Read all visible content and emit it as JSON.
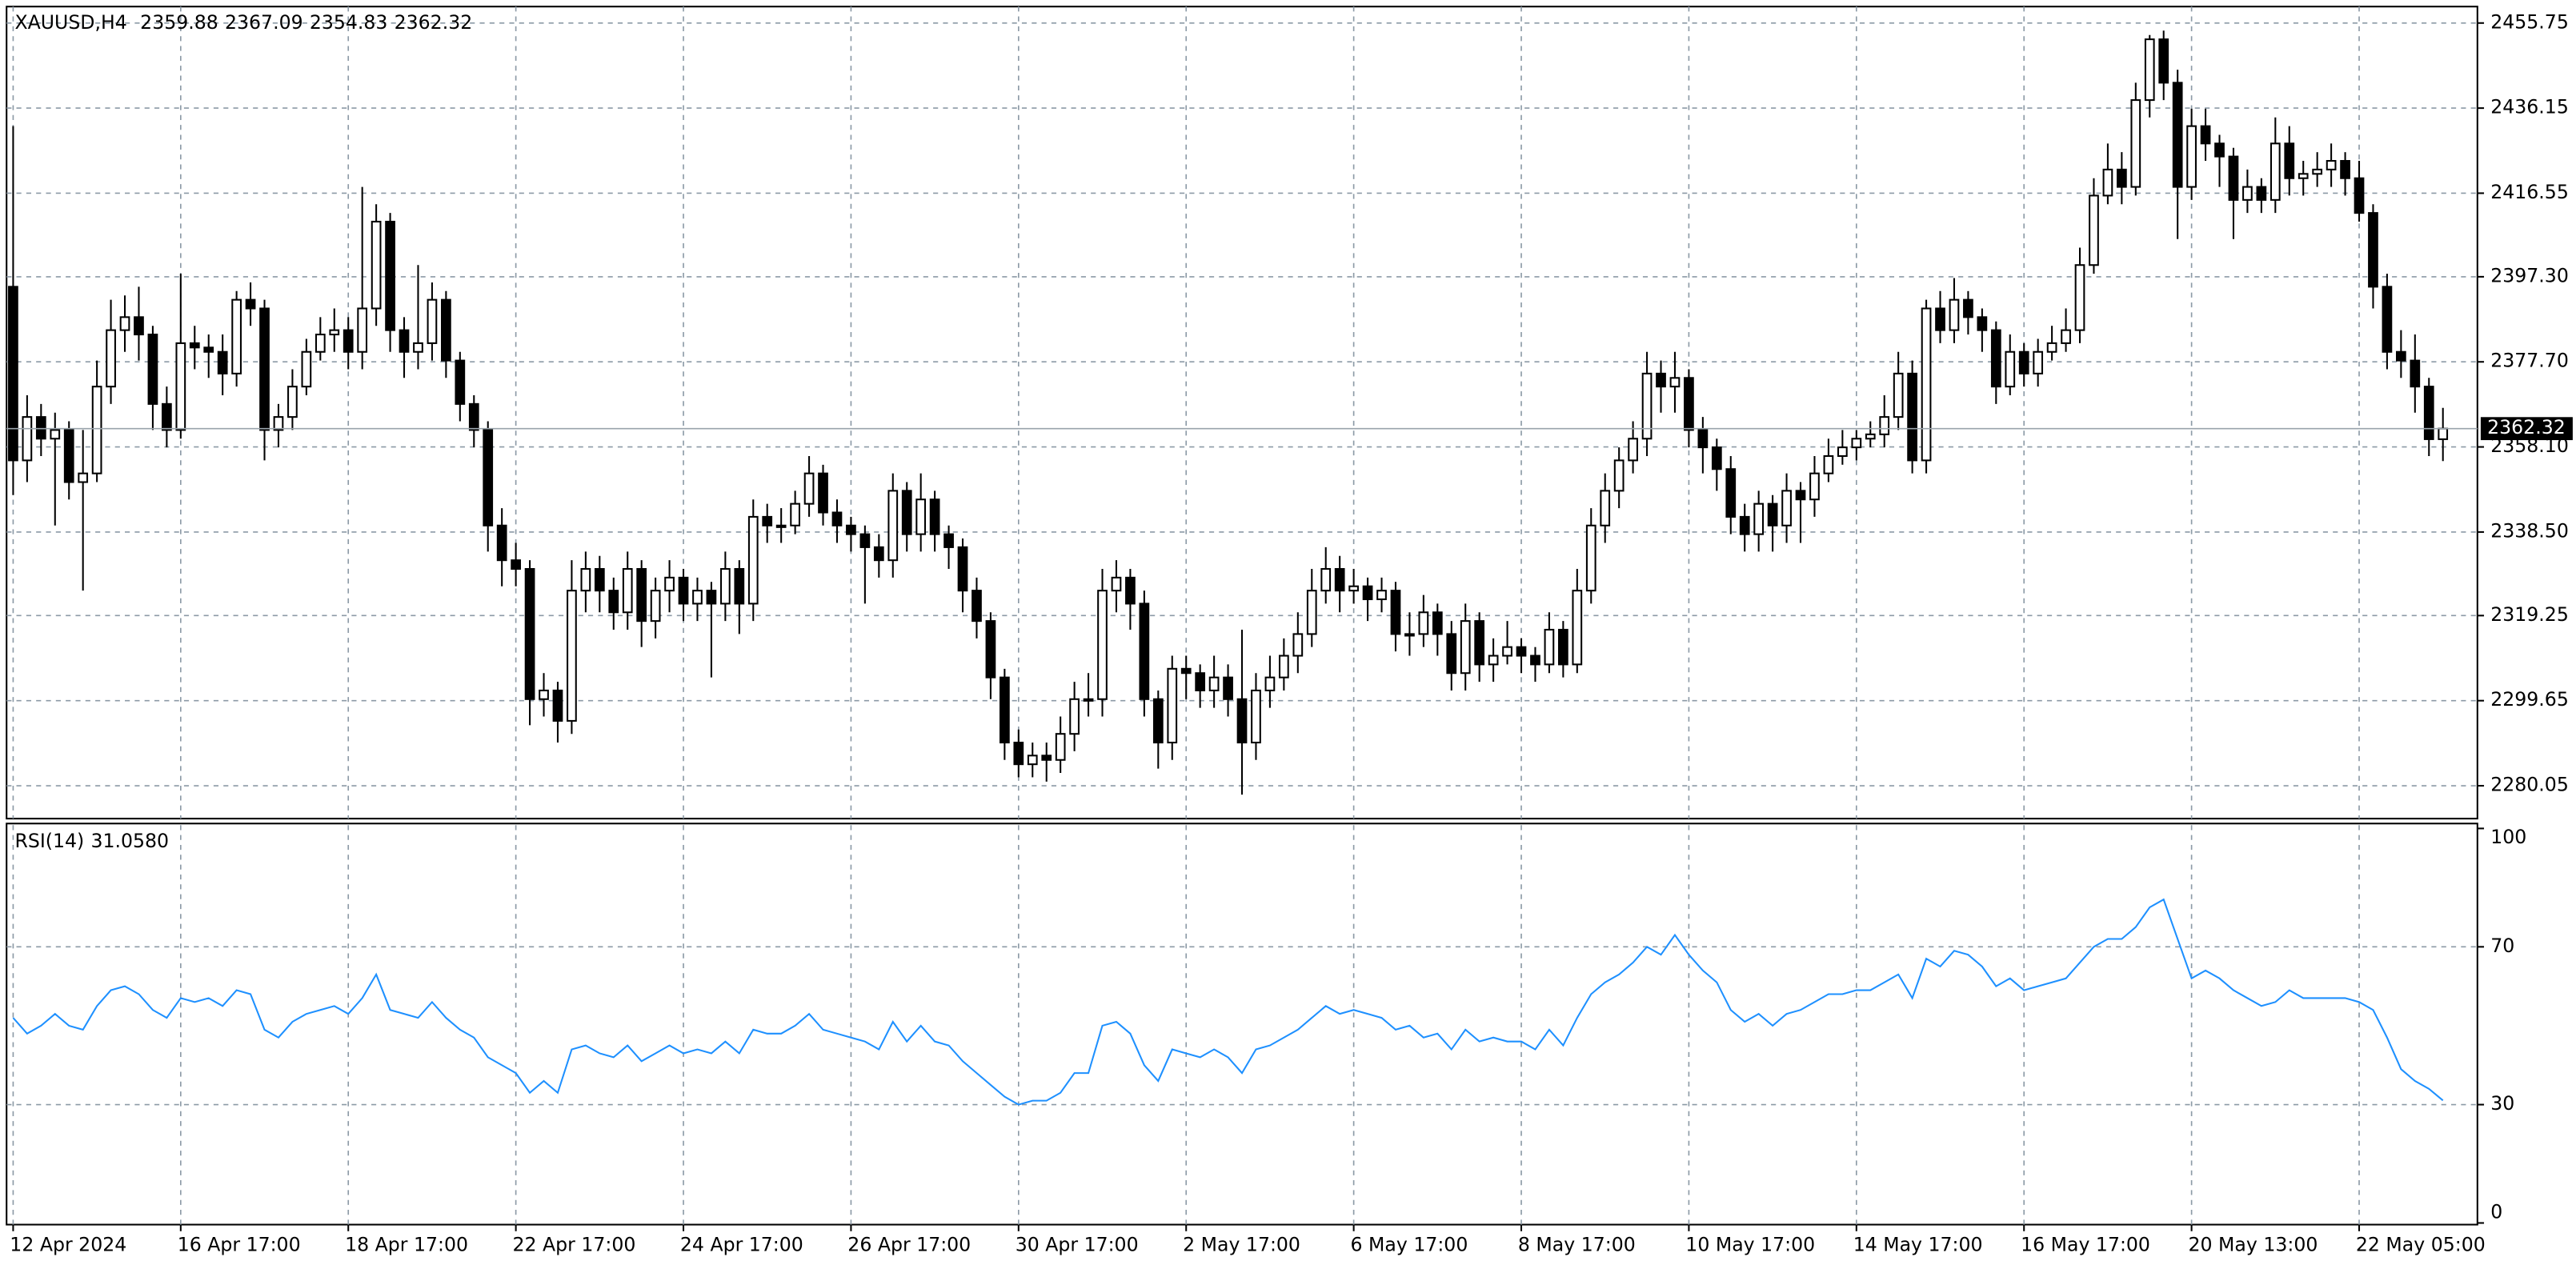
{
  "chart_data": {
    "type": "candlestick",
    "symbol": "XAUUSD,H4",
    "categories": [
      "12 Apr 2024",
      null,
      null,
      null,
      null,
      null,
      null,
      null,
      null,
      null,
      null,
      null,
      "16 Apr 17:00",
      null,
      null,
      null,
      null,
      null,
      null,
      null,
      null,
      null,
      null,
      null,
      "18 Apr 17:00",
      null,
      null,
      null,
      null,
      null,
      null,
      null,
      null,
      null,
      null,
      null,
      "22 Apr 17:00",
      null,
      null,
      null,
      null,
      null,
      null,
      null,
      null,
      null,
      null,
      null,
      "24 Apr 17:00",
      null,
      null,
      null,
      null,
      null,
      null,
      null,
      null,
      null,
      null,
      null,
      "26 Apr 17:00",
      null,
      null,
      null,
      null,
      null,
      null,
      null,
      null,
      null,
      null,
      null,
      "30 Apr 17:00",
      null,
      null,
      null,
      null,
      null,
      null,
      null,
      null,
      null,
      null,
      null,
      "2 May 17:00",
      null,
      null,
      null,
      null,
      null,
      null,
      null,
      null,
      null,
      null,
      null,
      "6 May 17:00",
      null,
      null,
      null,
      null,
      null,
      null,
      null,
      null,
      null,
      null,
      null,
      "8 May 17:00",
      null,
      null,
      null,
      null,
      null,
      null,
      null,
      null,
      null,
      null,
      null,
      "10 May 17:00",
      null,
      null,
      null,
      null,
      null,
      null,
      null,
      null,
      null,
      null,
      null,
      "14 May 17:00",
      null,
      null,
      null,
      null,
      null,
      null,
      null,
      null,
      null,
      null,
      null,
      "16 May 17:00",
      null,
      null,
      null,
      null,
      null,
      null,
      null,
      null,
      null,
      null,
      null,
      "20 May 13:00",
      null,
      null,
      null,
      null,
      null,
      null,
      null,
      null,
      null,
      null,
      null,
      "22 May 05:00",
      null,
      null,
      null,
      null,
      null,
      null
    ],
    "candles": [
      [
        2395,
        2432,
        2347,
        2355
      ],
      [
        2355,
        2370,
        2350,
        2365
      ],
      [
        2365,
        2368,
        2356,
        2360
      ],
      [
        2360,
        2366,
        2340,
        2362
      ],
      [
        2362,
        2364,
        2346,
        2350
      ],
      [
        2350,
        2362,
        2325,
        2352
      ],
      [
        2352,
        2378,
        2350,
        2372
      ],
      [
        2372,
        2392,
        2368,
        2385
      ],
      [
        2385,
        2393,
        2380,
        2388
      ],
      [
        2388,
        2395,
        2378,
        2384
      ],
      [
        2384,
        2386,
        2362,
        2368
      ],
      [
        2368,
        2372,
        2358,
        2362
      ],
      [
        2362,
        2398,
        2360,
        2382
      ],
      [
        2382,
        2386,
        2376,
        2381
      ],
      [
        2381,
        2384,
        2374,
        2380
      ],
      [
        2380,
        2384,
        2370,
        2375
      ],
      [
        2375,
        2394,
        2372,
        2392
      ],
      [
        2392,
        2396,
        2386,
        2390
      ],
      [
        2390,
        2392,
        2355,
        2362
      ],
      [
        2362,
        2368,
        2358,
        2365
      ],
      [
        2365,
        2376,
        2362,
        2372
      ],
      [
        2372,
        2383,
        2370,
        2380
      ],
      [
        2380,
        2388,
        2378,
        2384
      ],
      [
        2384,
        2390,
        2380,
        2385
      ],
      [
        2385,
        2388,
        2376,
        2380
      ],
      [
        2380,
        2418,
        2376,
        2390
      ],
      [
        2390,
        2414,
        2386,
        2410
      ],
      [
        2410,
        2412,
        2380,
        2385
      ],
      [
        2385,
        2388,
        2374,
        2380
      ],
      [
        2380,
        2400,
        2376,
        2382
      ],
      [
        2382,
        2396,
        2378,
        2392
      ],
      [
        2392,
        2394,
        2374,
        2378
      ],
      [
        2378,
        2380,
        2364,
        2368
      ],
      [
        2368,
        2370,
        2358,
        2362
      ],
      [
        2362,
        2364,
        2334,
        2340
      ],
      [
        2340,
        2344,
        2326,
        2332
      ],
      [
        2332,
        2336,
        2326,
        2330
      ],
      [
        2330,
        2332,
        2294,
        2300
      ],
      [
        2300,
        2306,
        2296,
        2302
      ],
      [
        2302,
        2304,
        2290,
        2295
      ],
      [
        2295,
        2332,
        2292,
        2325
      ],
      [
        2325,
        2334,
        2320,
        2330
      ],
      [
        2330,
        2333,
        2320,
        2325
      ],
      [
        2325,
        2328,
        2316,
        2320
      ],
      [
        2320,
        2334,
        2316,
        2330
      ],
      [
        2330,
        2332,
        2312,
        2318
      ],
      [
        2318,
        2328,
        2314,
        2325
      ],
      [
        2325,
        2332,
        2320,
        2328
      ],
      [
        2328,
        2330,
        2318,
        2322
      ],
      [
        2322,
        2328,
        2318,
        2325
      ],
      [
        2325,
        2327,
        2305,
        2322
      ],
      [
        2322,
        2334,
        2318,
        2330
      ],
      [
        2330,
        2332,
        2315,
        2322
      ],
      [
        2322,
        2346,
        2318,
        2342
      ],
      [
        2342,
        2345,
        2336,
        2340
      ],
      [
        2340,
        2344,
        2336,
        2340
      ],
      [
        2340,
        2348,
        2338,
        2345
      ],
      [
        2345,
        2356,
        2342,
        2352
      ],
      [
        2352,
        2354,
        2340,
        2343
      ],
      [
        2343,
        2346,
        2336,
        2340
      ],
      [
        2340,
        2342,
        2334,
        2338
      ],
      [
        2338,
        2340,
        2322,
        2335
      ],
      [
        2335,
        2338,
        2328,
        2332
      ],
      [
        2332,
        2352,
        2328,
        2348
      ],
      [
        2348,
        2350,
        2334,
        2338
      ],
      [
        2338,
        2352,
        2334,
        2346
      ],
      [
        2346,
        2348,
        2334,
        2338
      ],
      [
        2338,
        2340,
        2330,
        2335
      ],
      [
        2335,
        2337,
        2320,
        2325
      ],
      [
        2325,
        2328,
        2314,
        2318
      ],
      [
        2318,
        2320,
        2300,
        2305
      ],
      [
        2305,
        2307,
        2286,
        2290
      ],
      [
        2290,
        2293,
        2282,
        2285
      ],
      [
        2285,
        2290,
        2282,
        2287
      ],
      [
        2287,
        2290,
        2281,
        2286
      ],
      [
        2286,
        2296,
        2283,
        2292
      ],
      [
        2292,
        2304,
        2288,
        2300
      ],
      [
        2300,
        2306,
        2296,
        2300
      ],
      [
        2300,
        2330,
        2296,
        2325
      ],
      [
        2325,
        2332,
        2320,
        2328
      ],
      [
        2328,
        2330,
        2316,
        2322
      ],
      [
        2322,
        2325,
        2296,
        2300
      ],
      [
        2300,
        2302,
        2284,
        2290
      ],
      [
        2290,
        2310,
        2286,
        2307
      ],
      [
        2307,
        2310,
        2300,
        2306
      ],
      [
        2306,
        2308,
        2298,
        2302
      ],
      [
        2302,
        2310,
        2298,
        2305
      ],
      [
        2305,
        2308,
        2296,
        2300
      ],
      [
        2300,
        2316,
        2278,
        2290
      ],
      [
        2290,
        2306,
        2286,
        2302
      ],
      [
        2302,
        2310,
        2298,
        2305
      ],
      [
        2305,
        2314,
        2302,
        2310
      ],
      [
        2310,
        2320,
        2306,
        2315
      ],
      [
        2315,
        2330,
        2312,
        2325
      ],
      [
        2325,
        2335,
        2322,
        2330
      ],
      [
        2330,
        2333,
        2320,
        2325
      ],
      [
        2325,
        2330,
        2322,
        2326
      ],
      [
        2326,
        2328,
        2318,
        2323
      ],
      [
        2323,
        2328,
        2320,
        2325
      ],
      [
        2325,
        2327,
        2311,
        2315
      ],
      [
        2315,
        2320,
        2310,
        2315
      ],
      [
        2315,
        2324,
        2312,
        2320
      ],
      [
        2320,
        2322,
        2310,
        2315
      ],
      [
        2315,
        2318,
        2302,
        2306
      ],
      [
        2306,
        2322,
        2302,
        2318
      ],
      [
        2318,
        2320,
        2304,
        2308
      ],
      [
        2308,
        2314,
        2304,
        2310
      ],
      [
        2310,
        2318,
        2308,
        2312
      ],
      [
        2312,
        2314,
        2306,
        2310
      ],
      [
        2310,
        2312,
        2304,
        2308
      ],
      [
        2308,
        2320,
        2306,
        2316
      ],
      [
        2316,
        2318,
        2305,
        2308
      ],
      [
        2308,
        2330,
        2306,
        2325
      ],
      [
        2325,
        2344,
        2322,
        2340
      ],
      [
        2340,
        2352,
        2336,
        2348
      ],
      [
        2348,
        2358,
        2344,
        2355
      ],
      [
        2355,
        2364,
        2352,
        2360
      ],
      [
        2360,
        2380,
        2356,
        2375
      ],
      [
        2375,
        2378,
        2366,
        2372
      ],
      [
        2372,
        2380,
        2366,
        2374
      ],
      [
        2374,
        2376,
        2358,
        2362
      ],
      [
        2362,
        2365,
        2352,
        2358
      ],
      [
        2358,
        2360,
        2348,
        2353
      ],
      [
        2353,
        2356,
        2338,
        2342
      ],
      [
        2342,
        2345,
        2334,
        2338
      ],
      [
        2338,
        2348,
        2334,
        2345
      ],
      [
        2345,
        2347,
        2334,
        2340
      ],
      [
        2340,
        2352,
        2336,
        2348
      ],
      [
        2348,
        2350,
        2336,
        2346
      ],
      [
        2346,
        2356,
        2342,
        2352
      ],
      [
        2352,
        2360,
        2350,
        2356
      ],
      [
        2356,
        2362,
        2354,
        2358
      ],
      [
        2358,
        2362,
        2355,
        2360
      ],
      [
        2360,
        2364,
        2358,
        2361
      ],
      [
        2361,
        2370,
        2358,
        2365
      ],
      [
        2365,
        2380,
        2362,
        2375
      ],
      [
        2375,
        2378,
        2352,
        2355
      ],
      [
        2355,
        2392,
        2352,
        2390
      ],
      [
        2390,
        2394,
        2382,
        2385
      ],
      [
        2385,
        2397,
        2382,
        2392
      ],
      [
        2392,
        2394,
        2384,
        2388
      ],
      [
        2388,
        2390,
        2380,
        2385
      ],
      [
        2385,
        2387,
        2368,
        2372
      ],
      [
        2372,
        2384,
        2370,
        2380
      ],
      [
        2380,
        2382,
        2372,
        2375
      ],
      [
        2375,
        2383,
        2372,
        2380
      ],
      [
        2380,
        2386,
        2378,
        2382
      ],
      [
        2382,
        2390,
        2380,
        2385
      ],
      [
        2385,
        2404,
        2382,
        2400
      ],
      [
        2400,
        2420,
        2398,
        2416
      ],
      [
        2416,
        2428,
        2414,
        2422
      ],
      [
        2422,
        2426,
        2414,
        2418
      ],
      [
        2418,
        2442,
        2416,
        2438
      ],
      [
        2438,
        2453,
        2434,
        2452
      ],
      [
        2452,
        2454,
        2438,
        2442
      ],
      [
        2442,
        2445,
        2406,
        2418
      ],
      [
        2418,
        2436,
        2415,
        2432
      ],
      [
        2432,
        2436,
        2424,
        2428
      ],
      [
        2428,
        2430,
        2418,
        2425
      ],
      [
        2425,
        2427,
        2406,
        2415
      ],
      [
        2415,
        2422,
        2412,
        2418
      ],
      [
        2418,
        2420,
        2412,
        2415
      ],
      [
        2415,
        2434,
        2412,
        2428
      ],
      [
        2428,
        2432,
        2416,
        2420
      ],
      [
        2420,
        2424,
        2416,
        2421
      ],
      [
        2421,
        2426,
        2418,
        2422
      ],
      [
        2422,
        2428,
        2418,
        2424
      ],
      [
        2424,
        2426,
        2416,
        2420
      ],
      [
        2420,
        2424,
        2410,
        2412
      ],
      [
        2412,
        2414,
        2390,
        2395
      ],
      [
        2395,
        2398,
        2376,
        2380
      ],
      [
        2380,
        2385,
        2374,
        2378
      ],
      [
        2378,
        2384,
        2366,
        2372
      ],
      [
        2372,
        2374,
        2356,
        2359.88
      ],
      [
        2359.88,
        2367.09,
        2354.83,
        2362.32
      ]
    ],
    "up_color": "#ffffff",
    "down_color": "#000000",
    "outline_color": "#000000",
    "ylim": [
      2272.86,
      2459.16
    ],
    "yticks": [
      2455.75,
      2436.15,
      2416.55,
      {
        "value": 2397.3,
        "label": "2397.30"
      },
      {
        "value": 2377.7,
        "label": "2377.70"
      },
      {
        "value": 2358.1,
        "label": "2358.10"
      },
      {
        "value": 2338.5,
        "label": "2338.50"
      },
      2319.25,
      2299.65,
      2280.05
    ],
    "grid": true,
    "indicator": {
      "name": "RSI(14)",
      "value_label": "31.0580",
      "color": "#1e90ff",
      "ylim": [
        0,
        100
      ],
      "yticks": [
        0,
        30,
        70,
        100
      ],
      "values": [
        52,
        48,
        50,
        53,
        50,
        49,
        55,
        59,
        60,
        58,
        54,
        52,
        57,
        56,
        57,
        55,
        59,
        58,
        49,
        47,
        51,
        53,
        54,
        55,
        53,
        57,
        63,
        54,
        53,
        52,
        56,
        52,
        49,
        47,
        42,
        40,
        38,
        33,
        36,
        33,
        44,
        45,
        43,
        42,
        45,
        41,
        43,
        45,
        43,
        44,
        43,
        46,
        43,
        49,
        48,
        48,
        50,
        53,
        49,
        48,
        47,
        46,
        44,
        51,
        46,
        50,
        46,
        45,
        41,
        38,
        35,
        32,
        30,
        31,
        31,
        33,
        38,
        38,
        50,
        51,
        48,
        40,
        36,
        44,
        43,
        42,
        44,
        42,
        38,
        44,
        45,
        47,
        49,
        52,
        55,
        53,
        54,
        53,
        52,
        49,
        50,
        47,
        48,
        44,
        49,
        46,
        47,
        46,
        46,
        44,
        49,
        45,
        52,
        58,
        61,
        63,
        66,
        70,
        68,
        73,
        68,
        64,
        61,
        54,
        51,
        53,
        50,
        53,
        54,
        56,
        58,
        58,
        59,
        59,
        61,
        63,
        57,
        67,
        65,
        69,
        68,
        65,
        60,
        62,
        59,
        60,
        61,
        62,
        66,
        70,
        72,
        72,
        75,
        80,
        82,
        72,
        62,
        64,
        62,
        59,
        57,
        55,
        56,
        59,
        57,
        57,
        57,
        57,
        56,
        54,
        47,
        39,
        36,
        34,
        31.058
      ]
    }
  }
}
